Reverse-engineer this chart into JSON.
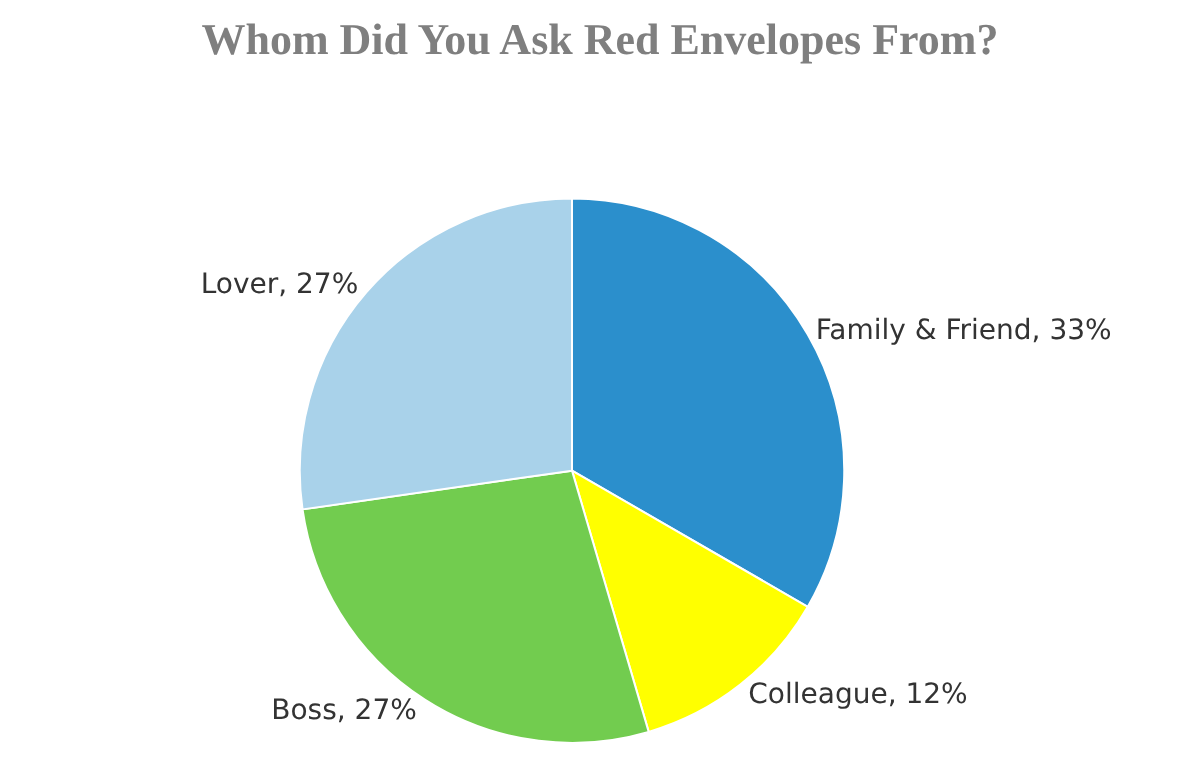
{
  "chart_data": {
    "type": "pie",
    "title": "Whom Did You Ask Red Envelopes From?",
    "categories": [
      "Family & Friend",
      "Colleague",
      "Boss",
      "Lover"
    ],
    "values": [
      33,
      12,
      27,
      27
    ],
    "value_labels": [
      "33%",
      "12%",
      "27%",
      "27%"
    ],
    "colors": [
      "#2b8fcc",
      "#ffff00",
      "#72cc4f",
      "#a9d2ea"
    ],
    "legend": false
  }
}
